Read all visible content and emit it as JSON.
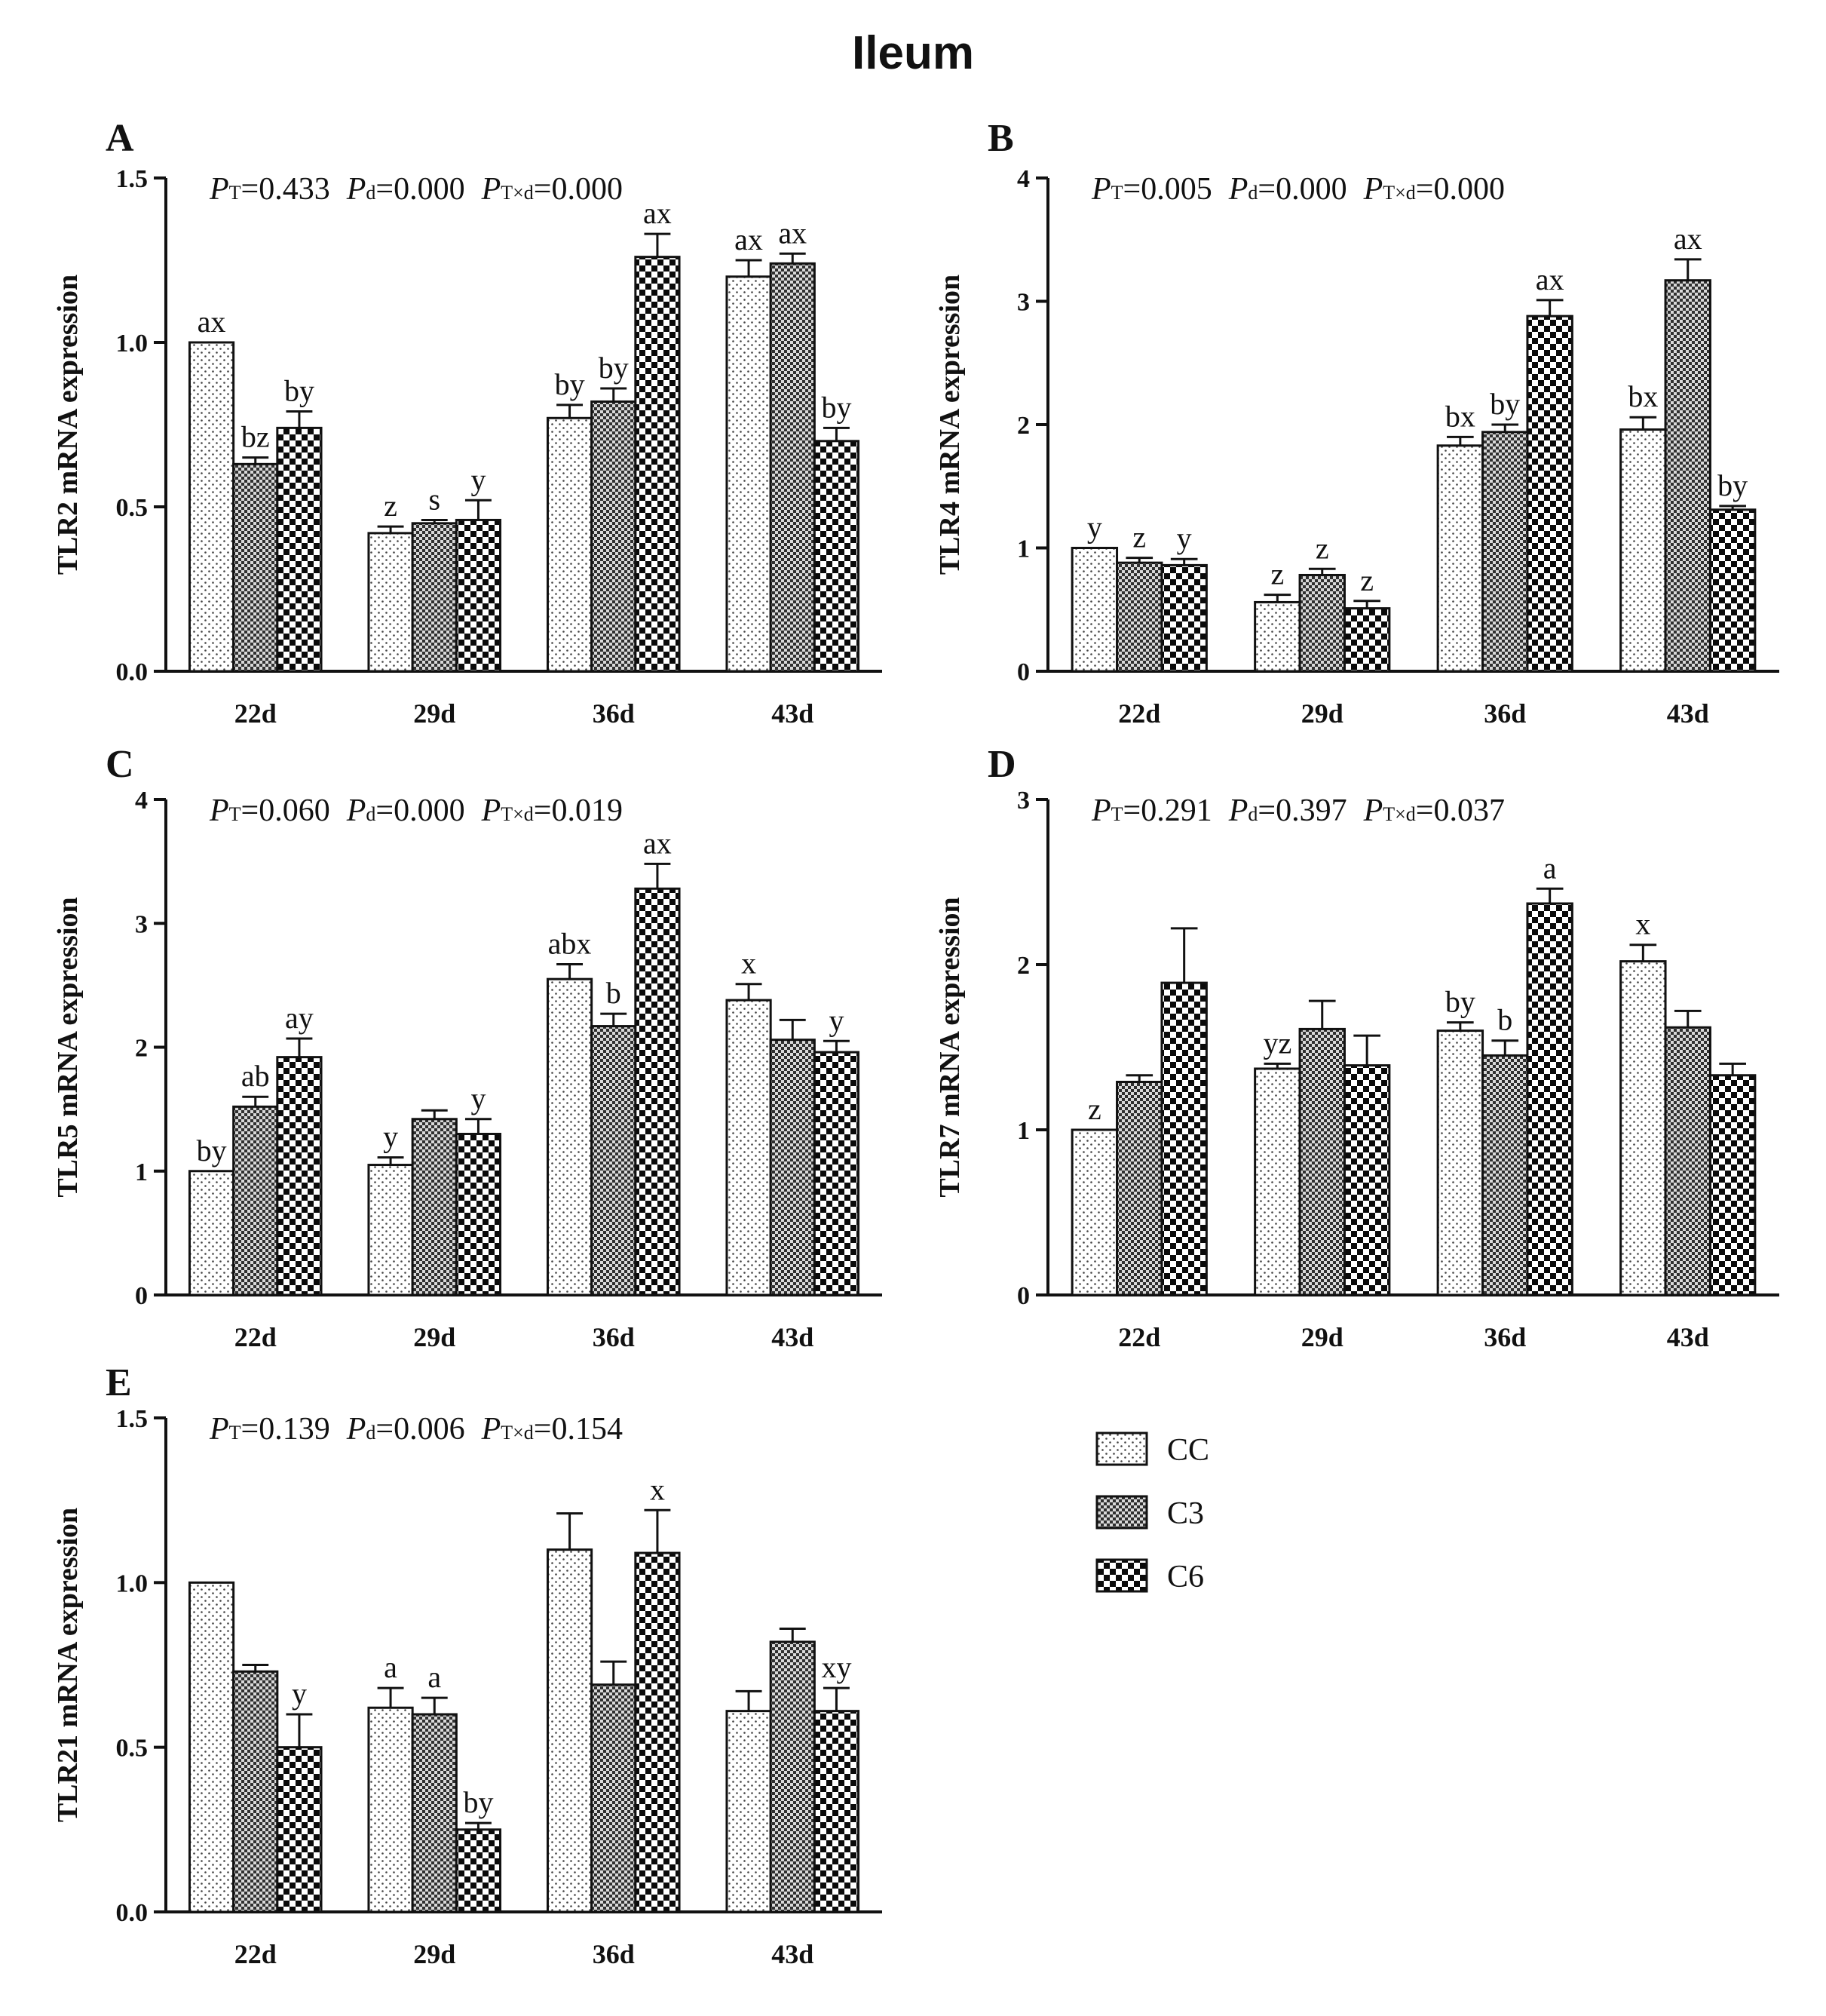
{
  "figure_title": "Ileum",
  "legend": [
    {
      "key": "CC",
      "label": "CC",
      "pattern": "dots"
    },
    {
      "key": "C3",
      "label": "C3",
      "pattern": "fine-check"
    },
    {
      "key": "C6",
      "label": "C6",
      "pattern": "coarse-check"
    }
  ],
  "colors": {
    "ink": "#111111",
    "bar_fill": "#ffffff"
  },
  "chart_data": [
    {
      "panel": "A",
      "type": "bar",
      "ylabel": "TLR2 mRNA expression",
      "categories": [
        "22d",
        "29d",
        "36d",
        "43d"
      ],
      "ylim": [
        0,
        1.5
      ],
      "yticks": [
        "0.0",
        "0.5",
        "1.0",
        "1.5"
      ],
      "pvalues": {
        "T": "=0.433",
        "d": "=0.000",
        "Txd": "=0.000"
      },
      "series": [
        {
          "name": "CC",
          "values": [
            1.0,
            0.42,
            0.77,
            1.2
          ],
          "errors": [
            0,
            0.02,
            0.04,
            0.05
          ],
          "labels": [
            "ax",
            "z",
            "by",
            "ax"
          ]
        },
        {
          "name": "C3",
          "values": [
            0.63,
            0.45,
            0.82,
            1.24
          ],
          "errors": [
            0.02,
            0.01,
            0.04,
            0.03
          ],
          "labels": [
            "bz",
            "s",
            "by",
            "ax"
          ]
        },
        {
          "name": "C6",
          "values": [
            0.74,
            0.46,
            1.26,
            0.7
          ],
          "errors": [
            0.05,
            0.06,
            0.07,
            0.04
          ],
          "labels": [
            "by",
            "y",
            "ax",
            "by"
          ]
        }
      ]
    },
    {
      "panel": "B",
      "type": "bar",
      "ylabel": "TLR4 mRNA expression",
      "categories": [
        "22d",
        "29d",
        "36d",
        "43d"
      ],
      "ylim": [
        0,
        4
      ],
      "yticks": [
        "0",
        "1",
        "2",
        "3",
        "4"
      ],
      "pvalues": {
        "T": "=0.005",
        "d": "=0.000",
        "Txd": "=0.000"
      },
      "series": [
        {
          "name": "CC",
          "values": [
            1.0,
            0.56,
            1.83,
            1.96
          ],
          "errors": [
            0,
            0.06,
            0.07,
            0.1
          ],
          "labels": [
            "y",
            "z",
            "bx",
            "bx"
          ]
        },
        {
          "name": "C3",
          "values": [
            0.88,
            0.78,
            1.94,
            3.17
          ],
          "errors": [
            0.04,
            0.05,
            0.06,
            0.17
          ],
          "labels": [
            "z",
            "z",
            "by",
            "ax"
          ]
        },
        {
          "name": "C6",
          "values": [
            0.86,
            0.51,
            2.88,
            1.31
          ],
          "errors": [
            0.05,
            0.06,
            0.13,
            0.03
          ],
          "labels": [
            "y",
            "z",
            "ax",
            "by"
          ]
        }
      ]
    },
    {
      "panel": "C",
      "type": "bar",
      "ylabel": "TLR5 mRNA expression",
      "categories": [
        "22d",
        "29d",
        "36d",
        "43d"
      ],
      "ylim": [
        0,
        4
      ],
      "yticks": [
        "0",
        "1",
        "2",
        "3",
        "4"
      ],
      "pvalues": {
        "T": "=0.060",
        "d": "=0.000",
        "Txd": "=0.019"
      },
      "series": [
        {
          "name": "CC",
          "values": [
            1.0,
            1.05,
            2.55,
            2.38
          ],
          "errors": [
            0,
            0.06,
            0.12,
            0.13
          ],
          "labels": [
            "by",
            "y",
            "abx",
            "x"
          ]
        },
        {
          "name": "C3",
          "values": [
            1.52,
            1.42,
            2.17,
            2.06
          ],
          "errors": [
            0.08,
            0.07,
            0.1,
            0.16
          ],
          "labels": [
            "ab",
            "",
            "b",
            ""
          ]
        },
        {
          "name": "C6",
          "values": [
            1.92,
            1.3,
            3.28,
            1.96
          ],
          "errors": [
            0.15,
            0.12,
            0.2,
            0.09
          ],
          "labels": [
            "ay",
            "y",
            "ax",
            "y"
          ]
        }
      ]
    },
    {
      "panel": "D",
      "type": "bar",
      "ylabel": "TLR7 mRNA expression",
      "categories": [
        "22d",
        "29d",
        "36d",
        "43d"
      ],
      "ylim": [
        0,
        3
      ],
      "yticks": [
        "0",
        "1",
        "2",
        "3"
      ],
      "pvalues": {
        "T": "=0.291",
        "d": "=0.397",
        "Txd": "=0.037"
      },
      "series": [
        {
          "name": "CC",
          "values": [
            1.0,
            1.37,
            1.6,
            2.02
          ],
          "errors": [
            0,
            0.03,
            0.05,
            0.1
          ],
          "labels": [
            "z",
            "yz",
            "by",
            "x"
          ]
        },
        {
          "name": "C3",
          "values": [
            1.29,
            1.61,
            1.45,
            1.62
          ],
          "errors": [
            0.04,
            0.17,
            0.09,
            0.1
          ],
          "labels": [
            "",
            "",
            "b",
            ""
          ]
        },
        {
          "name": "C6",
          "values": [
            1.89,
            1.39,
            2.37,
            1.33
          ],
          "errors": [
            0.33,
            0.18,
            0.09,
            0.07
          ],
          "labels": [
            "",
            "",
            "a",
            ""
          ]
        }
      ]
    },
    {
      "panel": "E",
      "type": "bar",
      "ylabel": "TLR21 mRNA expression",
      "categories": [
        "22d",
        "29d",
        "36d",
        "43d"
      ],
      "ylim": [
        0,
        1.5
      ],
      "yticks": [
        "0.0",
        "0.5",
        "1.0",
        "1.5"
      ],
      "pvalues": {
        "T": "=0.139",
        "d": "=0.006",
        "Txd": "=0.154"
      },
      "series": [
        {
          "name": "CC",
          "values": [
            1.0,
            0.62,
            1.1,
            0.61
          ],
          "errors": [
            0,
            0.06,
            0.11,
            0.06
          ],
          "labels": [
            "",
            "a",
            "",
            ""
          ]
        },
        {
          "name": "C3",
          "values": [
            0.73,
            0.6,
            0.69,
            0.82
          ],
          "errors": [
            0.02,
            0.05,
            0.07,
            0.04
          ],
          "labels": [
            "",
            "a",
            "",
            ""
          ]
        },
        {
          "name": "C6",
          "values": [
            0.5,
            0.25,
            1.09,
            0.61
          ],
          "errors": [
            0.1,
            0.02,
            0.13,
            0.07
          ],
          "labels": [
            "y",
            "by",
            "x",
            "xy"
          ]
        }
      ]
    }
  ]
}
